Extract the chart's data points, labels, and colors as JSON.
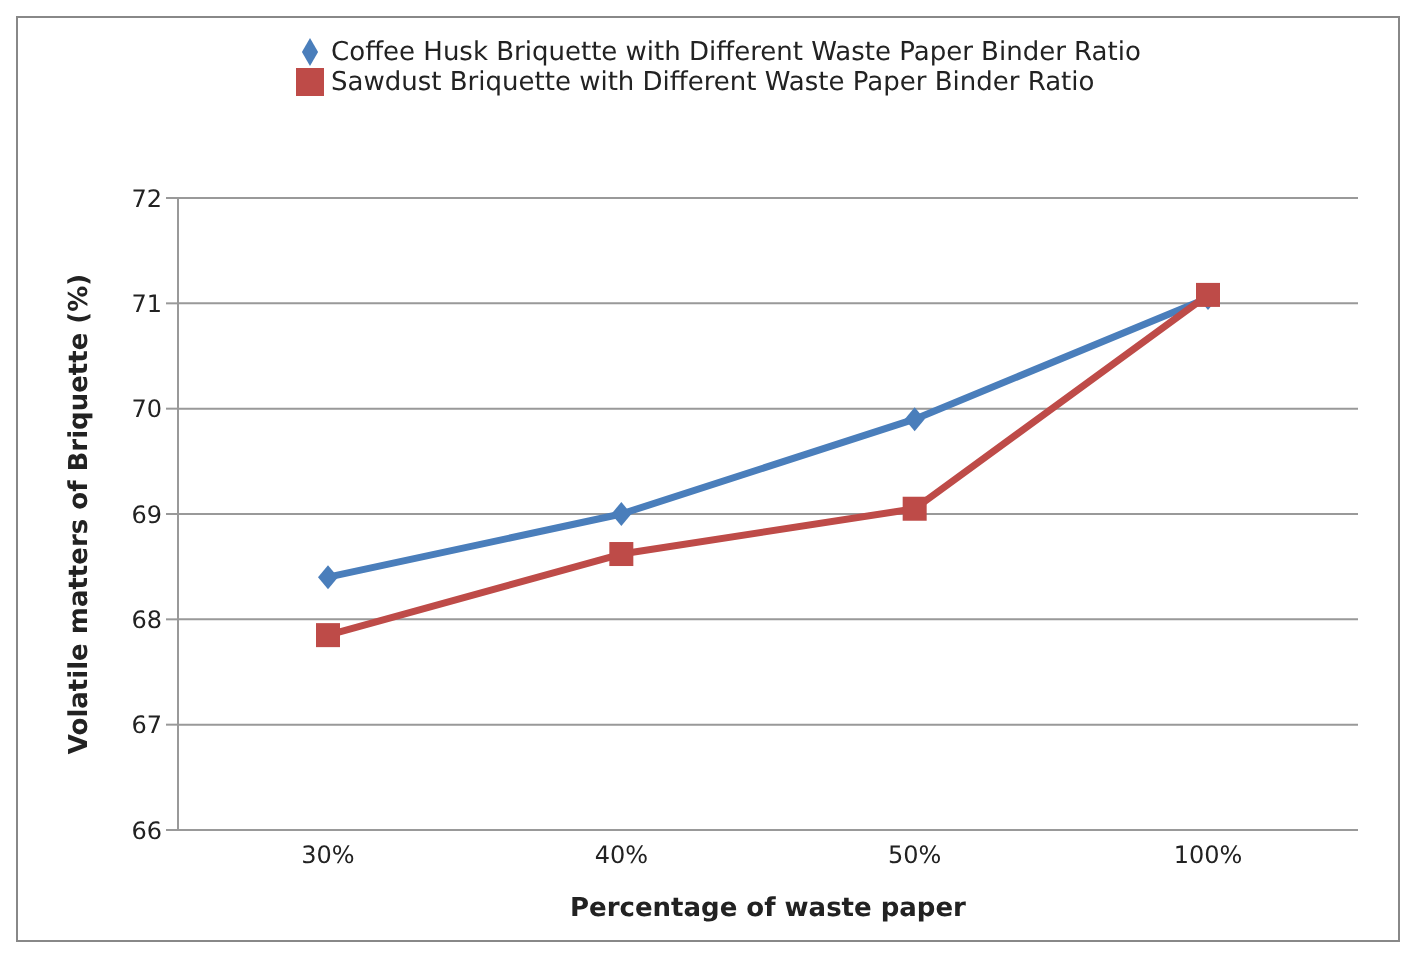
{
  "chart_data": {
    "type": "line",
    "xlabel": "Percentage of waste paper",
    "ylabel": "Volatile matters of Briquette (%)",
    "categories": [
      "30%",
      "40%",
      "50%",
      "100%"
    ],
    "series": [
      {
        "name": "Coffee Husk Briquette with Different Waste Paper Binder Ratio",
        "color": "#4a7ebb",
        "marker": "diamond",
        "values": [
          68.4,
          69.0,
          69.9,
          71.05
        ]
      },
      {
        "name": "Sawdust Briquette with Different Waste Paper Binder Ratio",
        "color": "#be4b48",
        "marker": "square",
        "values": [
          67.85,
          68.62,
          69.05,
          71.08
        ]
      }
    ],
    "ylim": [
      66,
      72
    ],
    "yticks": [
      66,
      67,
      68,
      69,
      70,
      71,
      72
    ],
    "grid": "y",
    "legend": "top",
    "line_style": "solid"
  }
}
